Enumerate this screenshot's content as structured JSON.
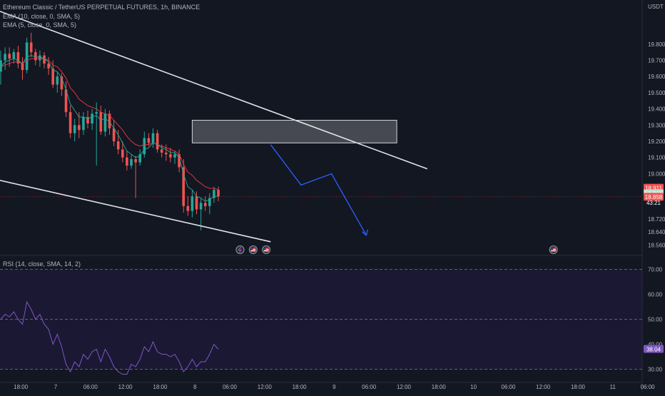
{
  "legend": {
    "symbol": "Ethereum Classic / TetherUS PERPETUAL FUTURES, 1h, BINANCE",
    "ema10": "EMA (10, close, 0, SMA, 5)",
    "ema5": "EMA (5, close, 0, SMA, 5)",
    "rsi": "RSI (14, close, SMA, 14, 2)"
  },
  "colors": {
    "background": "#131722",
    "up": "#26a69a",
    "down": "#ef5350",
    "ema10": "#f23645",
    "ema5": "#22ab94",
    "channel": "#e0e3eb",
    "projection": "#2962ff",
    "rsi_line": "#7e57c2",
    "rsi_band": "#1b1834"
  },
  "chart_data": {
    "type": "candlestick",
    "currency": "USDT",
    "ylim": [
      18.5,
      20.05
    ],
    "price_ticks": [
      "19.800",
      "19.700",
      "19.600",
      "19.500",
      "19.400",
      "19.300",
      "19.200",
      "19.100",
      "19.000",
      "18.720",
      "18.640",
      "18.560"
    ],
    "x_ticks": [
      "18:00",
      "7",
      "06:00",
      "12:00",
      "18:00",
      "8",
      "06:00",
      "12:00",
      "18:00",
      "9",
      "06:00",
      "12:00",
      "18:00",
      "10",
      "06:00",
      "12:00",
      "18:00",
      "11",
      "06:00"
    ],
    "candles": [
      {
        "o": 19.63,
        "h": 19.76,
        "l": 19.55,
        "c": 19.7
      },
      {
        "o": 19.7,
        "h": 19.78,
        "l": 19.64,
        "c": 19.74
      },
      {
        "o": 19.74,
        "h": 19.78,
        "l": 19.66,
        "c": 19.71
      },
      {
        "o": 19.71,
        "h": 19.77,
        "l": 19.68,
        "c": 19.75
      },
      {
        "o": 19.75,
        "h": 19.79,
        "l": 19.65,
        "c": 19.68
      },
      {
        "o": 19.68,
        "h": 19.72,
        "l": 19.58,
        "c": 19.64
      },
      {
        "o": 19.64,
        "h": 19.84,
        "l": 19.62,
        "c": 19.81
      },
      {
        "o": 19.81,
        "h": 19.87,
        "l": 19.72,
        "c": 19.75
      },
      {
        "o": 19.75,
        "h": 19.77,
        "l": 19.67,
        "c": 19.7
      },
      {
        "o": 19.7,
        "h": 19.76,
        "l": 19.66,
        "c": 19.73
      },
      {
        "o": 19.73,
        "h": 19.75,
        "l": 19.65,
        "c": 19.68
      },
      {
        "o": 19.68,
        "h": 19.72,
        "l": 19.61,
        "c": 19.65
      },
      {
        "o": 19.65,
        "h": 19.7,
        "l": 19.53,
        "c": 19.55
      },
      {
        "o": 19.55,
        "h": 19.63,
        "l": 19.5,
        "c": 19.6
      },
      {
        "o": 19.6,
        "h": 19.62,
        "l": 19.48,
        "c": 19.52
      },
      {
        "o": 19.52,
        "h": 19.57,
        "l": 19.35,
        "c": 19.38
      },
      {
        "o": 19.38,
        "h": 19.42,
        "l": 19.22,
        "c": 19.25
      },
      {
        "o": 19.25,
        "h": 19.34,
        "l": 19.2,
        "c": 19.3
      },
      {
        "o": 19.3,
        "h": 19.38,
        "l": 19.22,
        "c": 19.27
      },
      {
        "o": 19.27,
        "h": 19.38,
        "l": 19.24,
        "c": 19.35
      },
      {
        "o": 19.35,
        "h": 19.39,
        "l": 19.28,
        "c": 19.31
      },
      {
        "o": 19.31,
        "h": 19.4,
        "l": 19.27,
        "c": 19.37
      },
      {
        "o": 19.37,
        "h": 19.44,
        "l": 19.05,
        "c": 19.38
      },
      {
        "o": 19.38,
        "h": 19.42,
        "l": 19.24,
        "c": 19.26
      },
      {
        "o": 19.26,
        "h": 19.4,
        "l": 19.23,
        "c": 19.37
      },
      {
        "o": 19.37,
        "h": 19.39,
        "l": 19.24,
        "c": 19.28
      },
      {
        "o": 19.28,
        "h": 19.33,
        "l": 19.17,
        "c": 19.2
      },
      {
        "o": 19.2,
        "h": 19.27,
        "l": 19.12,
        "c": 19.15
      },
      {
        "o": 19.15,
        "h": 19.2,
        "l": 19.07,
        "c": 19.1
      },
      {
        "o": 19.1,
        "h": 19.14,
        "l": 19.02,
        "c": 19.05
      },
      {
        "o": 19.05,
        "h": 19.12,
        "l": 19.03,
        "c": 19.09
      },
      {
        "o": 19.09,
        "h": 19.11,
        "l": 18.85,
        "c": 19.07
      },
      {
        "o": 19.07,
        "h": 19.15,
        "l": 19.05,
        "c": 19.12
      },
      {
        "o": 19.12,
        "h": 19.26,
        "l": 19.1,
        "c": 19.22
      },
      {
        "o": 19.22,
        "h": 19.25,
        "l": 19.17,
        "c": 19.19
      },
      {
        "o": 19.19,
        "h": 19.28,
        "l": 19.16,
        "c": 19.25
      },
      {
        "o": 19.25,
        "h": 19.27,
        "l": 19.13,
        "c": 19.15
      },
      {
        "o": 19.15,
        "h": 19.18,
        "l": 19.1,
        "c": 19.13
      },
      {
        "o": 19.13,
        "h": 19.18,
        "l": 19.08,
        "c": 19.12
      },
      {
        "o": 19.12,
        "h": 19.16,
        "l": 19.07,
        "c": 19.1
      },
      {
        "o": 19.1,
        "h": 19.14,
        "l": 19.06,
        "c": 19.12
      },
      {
        "o": 19.12,
        "h": 19.15,
        "l": 19.01,
        "c": 19.04
      },
      {
        "o": 19.04,
        "h": 19.09,
        "l": 18.76,
        "c": 18.8
      },
      {
        "o": 18.8,
        "h": 18.86,
        "l": 18.74,
        "c": 18.77
      },
      {
        "o": 18.77,
        "h": 18.9,
        "l": 18.73,
        "c": 18.86
      },
      {
        "o": 18.86,
        "h": 18.89,
        "l": 18.75,
        "c": 18.78
      },
      {
        "o": 18.78,
        "h": 18.85,
        "l": 18.65,
        "c": 18.82
      },
      {
        "o": 18.82,
        "h": 18.86,
        "l": 18.77,
        "c": 18.8
      },
      {
        "o": 18.8,
        "h": 18.88,
        "l": 18.75,
        "c": 18.85
      },
      {
        "o": 18.85,
        "h": 18.92,
        "l": 18.82,
        "c": 18.9
      },
      {
        "o": 18.9,
        "h": 18.92,
        "l": 18.83,
        "c": 18.86
      }
    ],
    "ema10": [
      19.66,
      19.67,
      19.68,
      19.69,
      19.69,
      19.68,
      19.7,
      19.71,
      19.71,
      19.71,
      19.71,
      19.7,
      19.67,
      19.66,
      19.63,
      19.59,
      19.53,
      19.5,
      19.46,
      19.44,
      19.42,
      19.41,
      19.4,
      19.38,
      19.37,
      19.36,
      19.33,
      19.3,
      19.27,
      19.23,
      19.2,
      19.18,
      19.17,
      19.18,
      19.18,
      19.19,
      19.18,
      19.17,
      19.16,
      19.15,
      19.14,
      19.12,
      19.06,
      19.01,
      18.99,
      18.96,
      18.94,
      18.92,
      18.91,
      18.91,
      18.9
    ],
    "ema5": [
      19.66,
      19.69,
      19.7,
      19.71,
      19.7,
      19.68,
      19.72,
      19.73,
      19.72,
      19.72,
      19.71,
      19.69,
      19.64,
      19.63,
      19.59,
      19.52,
      19.43,
      19.39,
      19.35,
      19.35,
      19.34,
      19.35,
      19.36,
      19.33,
      19.34,
      19.32,
      19.28,
      19.24,
      19.19,
      19.14,
      19.12,
      19.1,
      19.11,
      19.15,
      19.16,
      19.19,
      19.18,
      19.16,
      19.15,
      19.13,
      19.13,
      19.1,
      19.0,
      18.92,
      18.9,
      18.86,
      18.85,
      18.83,
      18.84,
      18.86,
      18.86
    ],
    "rsi": [
      50,
      52,
      51,
      53,
      50,
      48,
      57,
      54,
      50,
      52,
      48,
      46,
      40,
      44,
      39,
      32,
      29,
      33,
      31,
      36,
      34,
      37,
      38,
      33,
      38,
      35,
      31,
      29,
      28,
      28,
      32,
      31,
      34,
      39,
      37,
      41,
      37,
      36,
      36,
      35,
      36,
      33,
      29,
      31,
      34,
      31,
      33,
      33,
      36,
      40,
      38
    ],
    "rsi_ylim": [
      25,
      75
    ],
    "rsi_ticks": [
      "70.00",
      "60.00",
      "50.00",
      "40.00",
      "30.00"
    ],
    "labels": {
      "currency": "USDT",
      "price_high": "18.911",
      "price_mid": "18.861",
      "price_last": "18.858",
      "countdown": "43:21",
      "rsi_value": "38.04"
    },
    "channel": {
      "upper": [
        {
          "bar": -2,
          "price": 20.02
        },
        {
          "bar": 98,
          "price": 19.03
        }
      ],
      "lower": [
        {
          "bar": -2,
          "price": 18.97
        },
        {
          "bar": 62,
          "price": 18.58
        }
      ]
    },
    "zone": {
      "bar_from": 44,
      "bar_to": 91,
      "price_high": 19.33,
      "price_low": 19.19
    },
    "projection": [
      {
        "bar": 62,
        "price": 19.18
      },
      {
        "bar": 69,
        "price": 18.93
      },
      {
        "bar": 76,
        "price": 19.0
      },
      {
        "bar": 84,
        "price": 18.62
      }
    ],
    "event_icons": [
      {
        "bar": 55,
        "kind": "lightning"
      },
      {
        "bar": 58,
        "kind": "flag"
      },
      {
        "bar": 61,
        "kind": "flag"
      },
      {
        "bar": 127,
        "kind": "flag"
      }
    ]
  }
}
